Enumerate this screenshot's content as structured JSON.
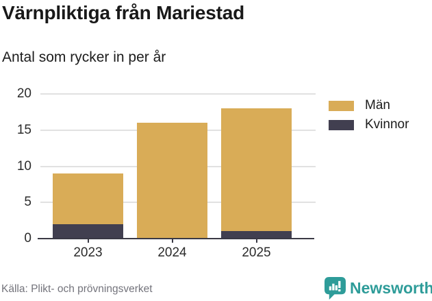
{
  "title": "Värnpliktiga från Mariestad",
  "subtitle": "Antal som rycker in per år",
  "legend": {
    "items": [
      {
        "label": "Män",
        "color": "#D9AC57"
      },
      {
        "label": "Kvinnor",
        "color": "#413F50"
      }
    ]
  },
  "footer": {
    "source": "Källa: Plikt- och prövningsverket",
    "brand": "Newsworthy"
  },
  "colors": {
    "background": "#ffffff",
    "title_text": "#191919",
    "axis": "#3a3945",
    "grid": "#e1e1e1",
    "tick_label": "#2b2b2b",
    "source_text": "#73737b",
    "brand_teal": "#2E9C99",
    "men_bar": "#D9AC57",
    "women_bar": "#413F50"
  },
  "chart_data": {
    "type": "bar",
    "stacked": true,
    "title": "Värnpliktiga från Mariestad",
    "subtitle": "Antal som rycker in per år",
    "categories": [
      "2023",
      "2024",
      "2025"
    ],
    "series": [
      {
        "name": "Män",
        "color": "#D9AC57",
        "values": [
          7,
          16,
          17
        ]
      },
      {
        "name": "Kvinnor",
        "color": "#413F50",
        "values": [
          2,
          0,
          1
        ]
      }
    ],
    "stack_order_bottom_to_top": [
      "Kvinnor",
      "Män"
    ],
    "totals": [
      9,
      16,
      18
    ],
    "xlabel": "",
    "ylabel": "",
    "ylim": [
      0,
      20
    ],
    "yticks": [
      0,
      5,
      10,
      15,
      20
    ],
    "grid": true,
    "legend_position": "right",
    "source": "Källa: Plikt- och prövningsverket"
  }
}
